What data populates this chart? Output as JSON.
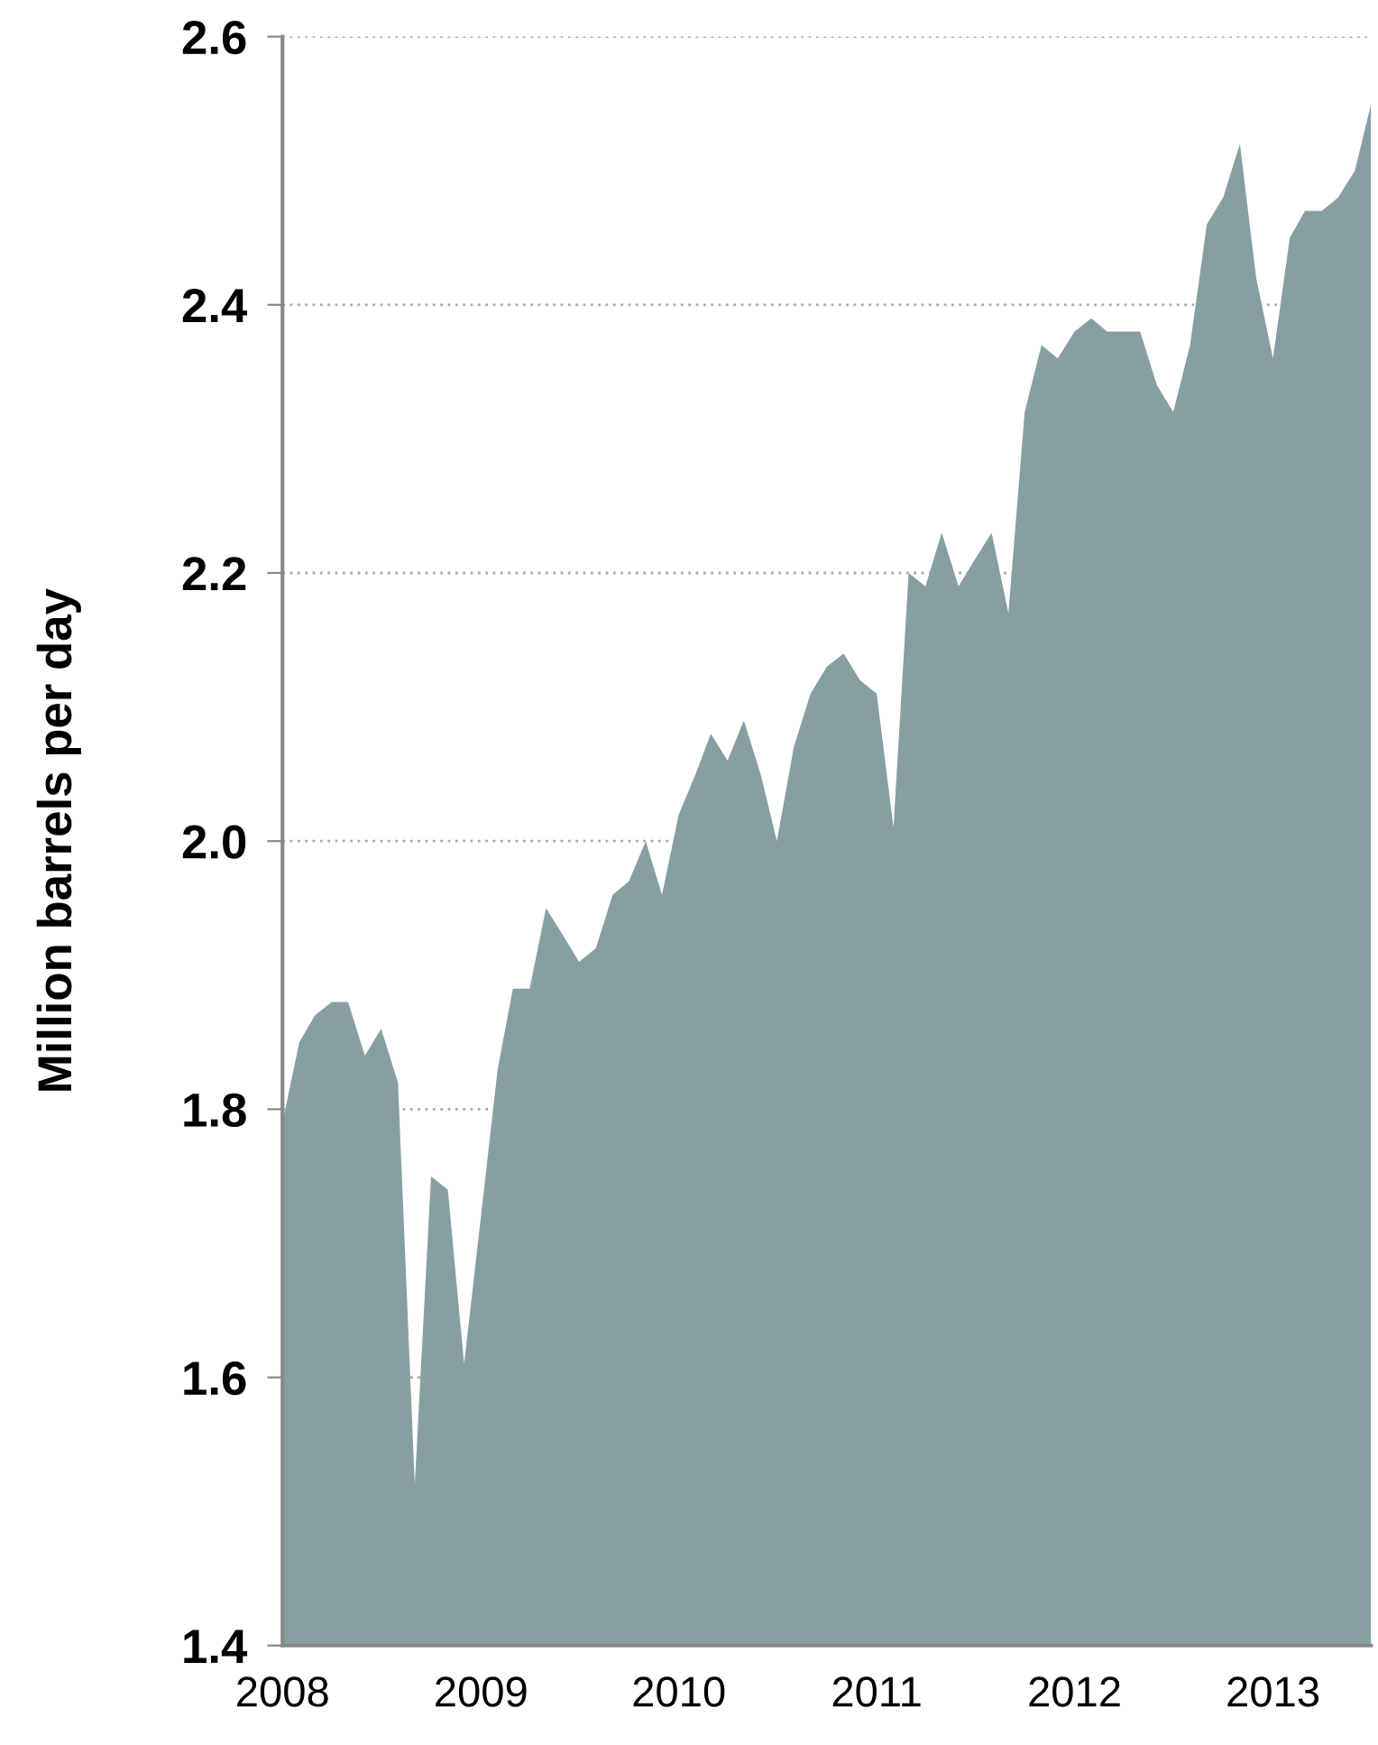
{
  "chart_data": {
    "type": "area",
    "ylabel": "Million barrels per day",
    "x": [
      "2008-01",
      "2008-02",
      "2008-03",
      "2008-04",
      "2008-05",
      "2008-06",
      "2008-07",
      "2008-08",
      "2008-09",
      "2008-10",
      "2008-11",
      "2008-12",
      "2009-01",
      "2009-02",
      "2009-03",
      "2009-04",
      "2009-05",
      "2009-06",
      "2009-07",
      "2009-08",
      "2009-09",
      "2009-10",
      "2009-11",
      "2009-12",
      "2010-01",
      "2010-02",
      "2010-03",
      "2010-04",
      "2010-05",
      "2010-06",
      "2010-07",
      "2010-08",
      "2010-09",
      "2010-10",
      "2010-11",
      "2010-12",
      "2011-01",
      "2011-02",
      "2011-03",
      "2011-04",
      "2011-05",
      "2011-06",
      "2011-07",
      "2011-08",
      "2011-09",
      "2011-10",
      "2011-11",
      "2011-12",
      "2012-01",
      "2012-02",
      "2012-03",
      "2012-04",
      "2012-05",
      "2012-06",
      "2012-07",
      "2012-08",
      "2012-09",
      "2012-10",
      "2012-11",
      "2012-12",
      "2013-01",
      "2013-02",
      "2013-03",
      "2013-04",
      "2013-05",
      "2013-06",
      "2013-07"
    ],
    "series": [
      {
        "color": "#879fa2",
        "values": [
          1.79,
          1.85,
          1.87,
          1.88,
          1.88,
          1.84,
          1.86,
          1.82,
          1.52,
          1.75,
          1.74,
          1.61,
          1.72,
          1.83,
          1.89,
          1.89,
          1.95,
          1.93,
          1.91,
          1.92,
          1.96,
          1.97,
          2.0,
          1.96,
          2.02,
          2.05,
          2.08,
          2.06,
          2.09,
          2.05,
          2.0,
          2.07,
          2.11,
          2.13,
          2.14,
          2.12,
          2.11,
          2.01,
          2.2,
          2.19,
          2.23,
          2.19,
          2.21,
          2.23,
          2.17,
          2.32,
          2.37,
          2.36,
          2.38,
          2.39,
          2.38,
          2.38,
          2.38,
          2.34,
          2.32,
          2.37,
          2.46,
          2.48,
          2.52,
          2.42,
          2.36,
          2.45,
          2.47,
          2.47,
          2.48,
          2.5,
          2.55
        ]
      }
    ],
    "xlim": [
      "2008-01",
      "2013-07"
    ],
    "xticks": [
      {
        "value": "2008-01",
        "label": "2008"
      },
      {
        "value": "2009-01",
        "label": "2009"
      },
      {
        "value": "2010-01",
        "label": "2010"
      },
      {
        "value": "2011-01",
        "label": "2011"
      },
      {
        "value": "2012-01",
        "label": "2012"
      },
      {
        "value": "2013-01",
        "label": "2013"
      }
    ],
    "ylim": [
      1.4,
      2.6
    ],
    "yticks": [
      {
        "value": 1.4,
        "label": "1.4"
      },
      {
        "value": 1.6,
        "label": "1.6"
      },
      {
        "value": 1.8,
        "label": "1.8"
      },
      {
        "value": 2.0,
        "label": "2.0"
      },
      {
        "value": 2.2,
        "label": "2.2"
      },
      {
        "value": 2.4,
        "label": "2.4"
      },
      {
        "value": 2.6,
        "label": "2.6"
      }
    ],
    "grid": "y"
  }
}
